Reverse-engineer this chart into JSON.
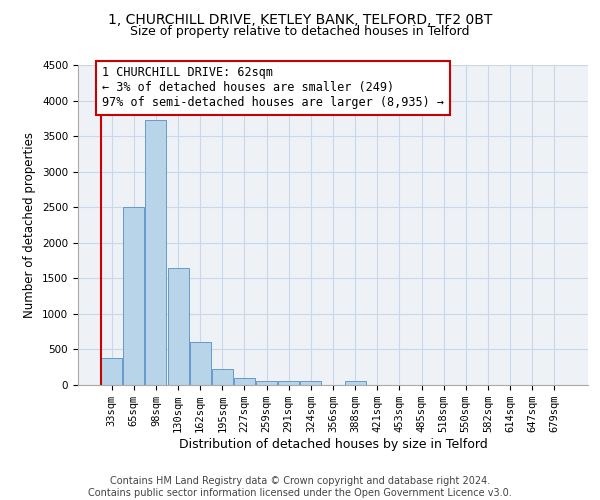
{
  "title1": "1, CHURCHILL DRIVE, KETLEY BANK, TELFORD, TF2 0BT",
  "title2": "Size of property relative to detached houses in Telford",
  "xlabel": "Distribution of detached houses by size in Telford",
  "ylabel": "Number of detached properties",
  "footer1": "Contains HM Land Registry data © Crown copyright and database right 2024.",
  "footer2": "Contains public sector information licensed under the Open Government Licence v3.0.",
  "bar_labels": [
    "33sqm",
    "65sqm",
    "98sqm",
    "130sqm",
    "162sqm",
    "195sqm",
    "227sqm",
    "259sqm",
    "291sqm",
    "324sqm",
    "356sqm",
    "388sqm",
    "421sqm",
    "453sqm",
    "485sqm",
    "518sqm",
    "550sqm",
    "582sqm",
    "614sqm",
    "647sqm",
    "679sqm"
  ],
  "bar_values": [
    380,
    2500,
    3730,
    1650,
    600,
    230,
    105,
    60,
    50,
    50,
    0,
    50,
    0,
    0,
    0,
    0,
    0,
    0,
    0,
    0,
    0
  ],
  "bar_color": "#b8d4e8",
  "bar_edge_color": "#6699cc",
  "annotation_line1": "1 CHURCHILL DRIVE: 62sqm",
  "annotation_line2": "← 3% of detached houses are smaller (249)",
  "annotation_line3": "97% of semi-detached houses are larger (8,935) →",
  "vline_color": "#cc0000",
  "annotation_box_color": "#cc0000",
  "ylim": [
    0,
    4500
  ],
  "grid_color": "#c8d8e8",
  "background_color": "#eef2f7",
  "title1_fontsize": 10,
  "title2_fontsize": 9,
  "xlabel_fontsize": 9,
  "ylabel_fontsize": 8.5,
  "tick_fontsize": 7.5,
  "footer_fontsize": 7,
  "annotation_fontsize": 8.5
}
